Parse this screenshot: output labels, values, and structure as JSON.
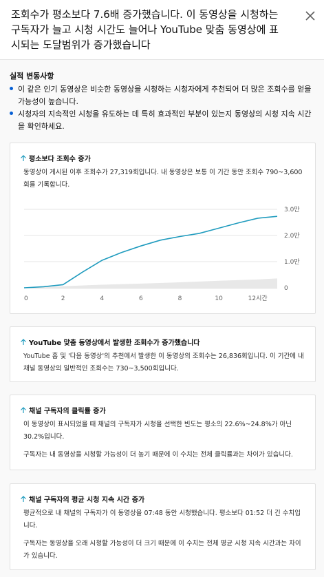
{
  "header": {
    "title": "조회수가 평소보다 7.6배 증가했습니다. 이 동영상을 시청하는 구독자가 늘고 시청 시간도 늘어나 YouTube 맞춤 동영상에 표시되는 도달범위가 증가했습니다"
  },
  "summary": {
    "heading": "실적 변동사항",
    "bullets": [
      "이 같은 인기 동영상은 비슷한 동영상을 시청하는 시청자에게 추천되어 더 많은 조회수를 얻을 가능성이 높습니다.",
      "시청자의 지속적인 시청을 유도하는 데 특히 효과적인 부분이 있는지 동영상의 시청 지속 시간을 확인하세요."
    ]
  },
  "cards": [
    {
      "title": "평소보다 조회수 증가",
      "body": "동영상이 게시된 이후 조회수가 27,319회입니다. 내 동영상은 보통 이 기간 동안 조회수 790~3,600회를 기록합니다."
    },
    {
      "title": "YouTube 맞춤 동영상에서 발생한 조회수가 증가했습니다",
      "body": "YouTube 홈 및 '다음 동영상'의 추천에서 발생한 이 동영상의 조회수는 26,836회입니다. 이 기간에 내 채널 동영상의 일반적인 조회수는 730~3,500회입니다."
    },
    {
      "title": "채널 구독자의 클릭률 증가",
      "body": "이 동영상이 표시되었을 때 채널의 구독자가 시청을 선택한 빈도는 평소의 22.6%~24.8%가 아닌 30.2%입니다.",
      "body2": "구독자는 내 동영상을 시청할 가능성이 더 높기 때문에 이 수치는 전체 클릭률과는 차이가 있습니다."
    },
    {
      "title": "채널 구독자의 평균 시청 지속 시간 증가",
      "body": "평균적으로 내 채널의 구독자가 이 동영상을 07:48 동안 시청했습니다. 평소보다 01:52 더 긴 수치입니다.",
      "body2": "구독자는 동영상을 오래 시청할 가능성이 더 크기 때문에 이 수치는 전체 평균 시청 지속 시간과는 차이가 있습니다."
    }
  ],
  "chart_data": {
    "type": "line",
    "x_ticks": [
      "0",
      "2",
      "4",
      "6",
      "8",
      "10",
      "12시간"
    ],
    "y_ticks": [
      "0",
      "1.0만",
      "2.0만",
      "3.0만"
    ],
    "ylim": [
      0,
      30000
    ],
    "xlim": [
      0,
      13
    ],
    "series": [
      {
        "values": [
          [
            0,
            0
          ],
          [
            1,
            400
          ],
          [
            2,
            1200
          ],
          [
            3,
            6000
          ],
          [
            4,
            10500
          ],
          [
            5,
            13500
          ],
          [
            6,
            16000
          ],
          [
            7,
            18200
          ],
          [
            8,
            19600
          ],
          [
            9,
            20800
          ],
          [
            10,
            22800
          ],
          [
            11,
            24800
          ],
          [
            12,
            26600
          ],
          [
            13,
            27319
          ]
        ],
        "color": "#1f9bbe"
      }
    ],
    "typical_range": [
      [
        0,
        0,
        0
      ],
      [
        2,
        0,
        600
      ],
      [
        4,
        0,
        1200
      ],
      [
        6,
        0,
        1600
      ],
      [
        8,
        0,
        2100
      ],
      [
        10,
        0,
        2700
      ],
      [
        12,
        0,
        3200
      ],
      [
        13,
        0,
        3600
      ]
    ]
  }
}
